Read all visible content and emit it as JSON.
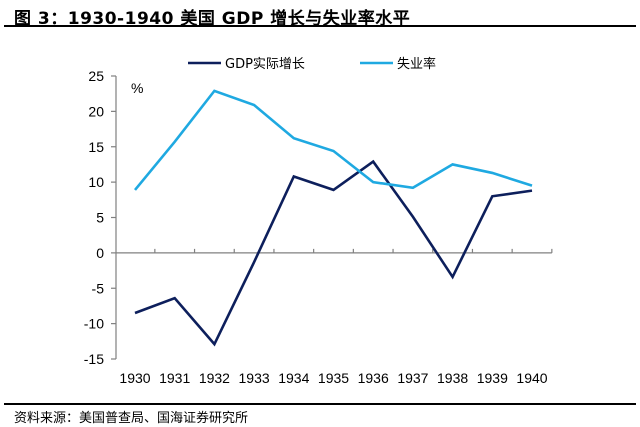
{
  "header": {
    "title": "图 3：1930-1940  美国 GDP 增长与失业率水平"
  },
  "footer": {
    "source": "资料来源：美国普查局、国海证券研究所"
  },
  "colors": {
    "gdp": "#0d1f5c",
    "unemployment": "#1fa9e1",
    "axis": "#808080"
  },
  "chart_data": {
    "type": "line",
    "title": "1930-1940 美国 GDP 增长与失业率水平",
    "xlabel": "",
    "ylabel": "%",
    "x": [
      "1930",
      "1931",
      "1932",
      "1933",
      "1934",
      "1935",
      "1936",
      "1937",
      "1938",
      "1939",
      "1940"
    ],
    "ylim": [
      -15,
      25
    ],
    "yticks": [
      -15,
      -10,
      -5,
      0,
      5,
      10,
      15,
      20,
      25
    ],
    "grid": false,
    "legend_position": "top-center",
    "series": [
      {
        "name": "GDP实际增长",
        "color": "#0d1f5c",
        "values": [
          -8.5,
          -6.4,
          -12.9,
          -1.3,
          10.8,
          8.9,
          12.9,
          5.1,
          -3.4,
          8.0,
          8.8
        ]
      },
      {
        "name": "失业率",
        "color": "#1fa9e1",
        "values": [
          8.9,
          15.7,
          22.9,
          20.9,
          16.2,
          14.4,
          10.0,
          9.2,
          12.5,
          11.3,
          9.5
        ]
      }
    ]
  }
}
